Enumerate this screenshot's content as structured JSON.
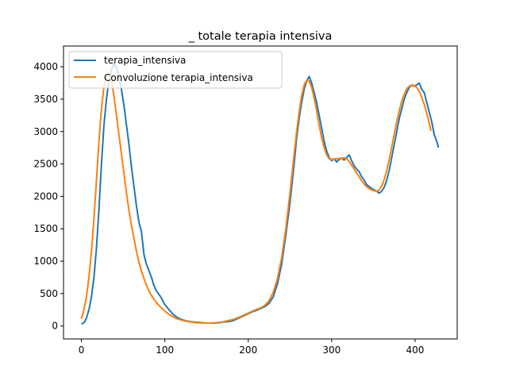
{
  "chart_data": {
    "type": "line",
    "title": "_ totale terapia intensiva",
    "xlabel": "",
    "ylabel": "",
    "xlim": [
      -21.5,
      450.5
    ],
    "ylim": [
      -200,
      4320
    ],
    "xticks": [
      0,
      100,
      200,
      300,
      400
    ],
    "yticks": [
      0,
      500,
      1000,
      1500,
      2000,
      2500,
      3000,
      3500,
      4000
    ],
    "legend_position": "upper-left",
    "grid": false,
    "series": [
      {
        "name": "terapia_intensiva",
        "color": "#1f77b4",
        "points": [
          [
            0,
            30
          ],
          [
            3,
            50
          ],
          [
            6,
            120
          ],
          [
            9,
            250
          ],
          [
            12,
            450
          ],
          [
            15,
            750
          ],
          [
            18,
            1200
          ],
          [
            21,
            1800
          ],
          [
            24,
            2500
          ],
          [
            27,
            3100
          ],
          [
            30,
            3500
          ],
          [
            33,
            3800
          ],
          [
            36,
            3950
          ],
          [
            39,
            4050
          ],
          [
            42,
            4000
          ],
          [
            45,
            3850
          ],
          [
            48,
            3650
          ],
          [
            51,
            3400
          ],
          [
            54,
            3100
          ],
          [
            57,
            2800
          ],
          [
            60,
            2450
          ],
          [
            63,
            2150
          ],
          [
            66,
            1850
          ],
          [
            69,
            1600
          ],
          [
            72,
            1450
          ],
          [
            75,
            1100
          ],
          [
            78,
            950
          ],
          [
            81,
            850
          ],
          [
            84,
            750
          ],
          [
            87,
            620
          ],
          [
            90,
            540
          ],
          [
            95,
            450
          ],
          [
            100,
            330
          ],
          [
            105,
            250
          ],
          [
            110,
            180
          ],
          [
            115,
            130
          ],
          [
            120,
            100
          ],
          [
            125,
            80
          ],
          [
            130,
            70
          ],
          [
            135,
            60
          ],
          [
            140,
            55
          ],
          [
            145,
            50
          ],
          [
            150,
            45
          ],
          [
            155,
            45
          ],
          [
            160,
            45
          ],
          [
            165,
            50
          ],
          [
            170,
            60
          ],
          [
            175,
            65
          ],
          [
            180,
            75
          ],
          [
            185,
            100
          ],
          [
            190,
            130
          ],
          [
            195,
            160
          ],
          [
            200,
            190
          ],
          [
            205,
            220
          ],
          [
            210,
            240
          ],
          [
            215,
            270
          ],
          [
            220,
            300
          ],
          [
            225,
            350
          ],
          [
            230,
            450
          ],
          [
            235,
            650
          ],
          [
            240,
            950
          ],
          [
            245,
            1400
          ],
          [
            250,
            1900
          ],
          [
            255,
            2500
          ],
          [
            258,
            2900
          ],
          [
            261,
            3200
          ],
          [
            264,
            3450
          ],
          [
            267,
            3650
          ],
          [
            270,
            3780
          ],
          [
            273,
            3850
          ],
          [
            276,
            3750
          ],
          [
            279,
            3600
          ],
          [
            282,
            3450
          ],
          [
            285,
            3250
          ],
          [
            288,
            3050
          ],
          [
            291,
            2850
          ],
          [
            294,
            2700
          ],
          [
            297,
            2600
          ],
          [
            300,
            2550
          ],
          [
            303,
            2580
          ],
          [
            306,
            2530
          ],
          [
            309,
            2570
          ],
          [
            312,
            2590
          ],
          [
            315,
            2560
          ],
          [
            318,
            2600
          ],
          [
            321,
            2640
          ],
          [
            324,
            2550
          ],
          [
            327,
            2470
          ],
          [
            330,
            2420
          ],
          [
            333,
            2380
          ],
          [
            336,
            2300
          ],
          [
            339,
            2250
          ],
          [
            342,
            2180
          ],
          [
            345,
            2150
          ],
          [
            348,
            2120
          ],
          [
            351,
            2100
          ],
          [
            354,
            2080
          ],
          [
            357,
            2050
          ],
          [
            360,
            2080
          ],
          [
            363,
            2140
          ],
          [
            366,
            2250
          ],
          [
            369,
            2400
          ],
          [
            372,
            2600
          ],
          [
            375,
            2800
          ],
          [
            378,
            3000
          ],
          [
            381,
            3200
          ],
          [
            384,
            3350
          ],
          [
            387,
            3500
          ],
          [
            390,
            3600
          ],
          [
            393,
            3680
          ],
          [
            396,
            3720
          ],
          [
            399,
            3700
          ],
          [
            402,
            3720
          ],
          [
            405,
            3750
          ],
          [
            408,
            3650
          ],
          [
            411,
            3600
          ],
          [
            414,
            3450
          ],
          [
            417,
            3300
          ],
          [
            420,
            3150
          ],
          [
            423,
            2950
          ],
          [
            426,
            2850
          ],
          [
            428,
            2750
          ]
        ]
      },
      {
        "name": "Convoluzione terapia_intensiva",
        "color": "#ff7f0e",
        "points": [
          [
            0,
            110
          ],
          [
            3,
            250
          ],
          [
            6,
            450
          ],
          [
            9,
            750
          ],
          [
            12,
            1150
          ],
          [
            15,
            1650
          ],
          [
            18,
            2250
          ],
          [
            21,
            2850
          ],
          [
            24,
            3350
          ],
          [
            27,
            3700
          ],
          [
            30,
            3850
          ],
          [
            33,
            3880
          ],
          [
            36,
            3780
          ],
          [
            39,
            3550
          ],
          [
            42,
            3250
          ],
          [
            45,
            2950
          ],
          [
            48,
            2650
          ],
          [
            51,
            2350
          ],
          [
            54,
            2050
          ],
          [
            57,
            1780
          ],
          [
            60,
            1550
          ],
          [
            63,
            1350
          ],
          [
            66,
            1150
          ],
          [
            69,
            980
          ],
          [
            72,
            850
          ],
          [
            75,
            730
          ],
          [
            78,
            630
          ],
          [
            81,
            540
          ],
          [
            84,
            470
          ],
          [
            87,
            410
          ],
          [
            90,
            360
          ],
          [
            95,
            290
          ],
          [
            100,
            230
          ],
          [
            105,
            180
          ],
          [
            110,
            140
          ],
          [
            115,
            110
          ],
          [
            120,
            90
          ],
          [
            125,
            75
          ],
          [
            130,
            65
          ],
          [
            135,
            55
          ],
          [
            140,
            50
          ],
          [
            145,
            47
          ],
          [
            150,
            45
          ],
          [
            155,
            45
          ],
          [
            160,
            48
          ],
          [
            165,
            55
          ],
          [
            170,
            65
          ],
          [
            175,
            80
          ],
          [
            180,
            95
          ],
          [
            185,
            115
          ],
          [
            190,
            140
          ],
          [
            195,
            170
          ],
          [
            200,
            200
          ],
          [
            205,
            230
          ],
          [
            210,
            255
          ],
          [
            215,
            280
          ],
          [
            220,
            320
          ],
          [
            225,
            390
          ],
          [
            230,
            520
          ],
          [
            235,
            730
          ],
          [
            240,
            1050
          ],
          [
            245,
            1500
          ],
          [
            250,
            2050
          ],
          [
            255,
            2650
          ],
          [
            258,
            3000
          ],
          [
            261,
            3300
          ],
          [
            264,
            3550
          ],
          [
            267,
            3720
          ],
          [
            270,
            3790
          ],
          [
            273,
            3780
          ],
          [
            276,
            3680
          ],
          [
            279,
            3520
          ],
          [
            282,
            3320
          ],
          [
            285,
            3100
          ],
          [
            288,
            2900
          ],
          [
            291,
            2750
          ],
          [
            294,
            2640
          ],
          [
            297,
            2580
          ],
          [
            300,
            2570
          ],
          [
            303,
            2575
          ],
          [
            306,
            2580
          ],
          [
            309,
            2585
          ],
          [
            312,
            2590
          ],
          [
            315,
            2595
          ],
          [
            318,
            2580
          ],
          [
            321,
            2540
          ],
          [
            324,
            2480
          ],
          [
            327,
            2420
          ],
          [
            330,
            2360
          ],
          [
            333,
            2300
          ],
          [
            336,
            2240
          ],
          [
            339,
            2190
          ],
          [
            342,
            2150
          ],
          [
            345,
            2120
          ],
          [
            348,
            2100
          ],
          [
            351,
            2085
          ],
          [
            354,
            2080
          ],
          [
            357,
            2100
          ],
          [
            360,
            2160
          ],
          [
            363,
            2260
          ],
          [
            366,
            2400
          ],
          [
            369,
            2570
          ],
          [
            372,
            2760
          ],
          [
            375,
            2960
          ],
          [
            378,
            3150
          ],
          [
            381,
            3320
          ],
          [
            384,
            3470
          ],
          [
            387,
            3580
          ],
          [
            390,
            3660
          ],
          [
            393,
            3700
          ],
          [
            396,
            3720
          ],
          [
            399,
            3710
          ],
          [
            402,
            3680
          ],
          [
            405,
            3620
          ],
          [
            408,
            3530
          ],
          [
            411,
            3420
          ],
          [
            414,
            3280
          ],
          [
            417,
            3130
          ],
          [
            419,
            3010
          ]
        ]
      }
    ]
  }
}
